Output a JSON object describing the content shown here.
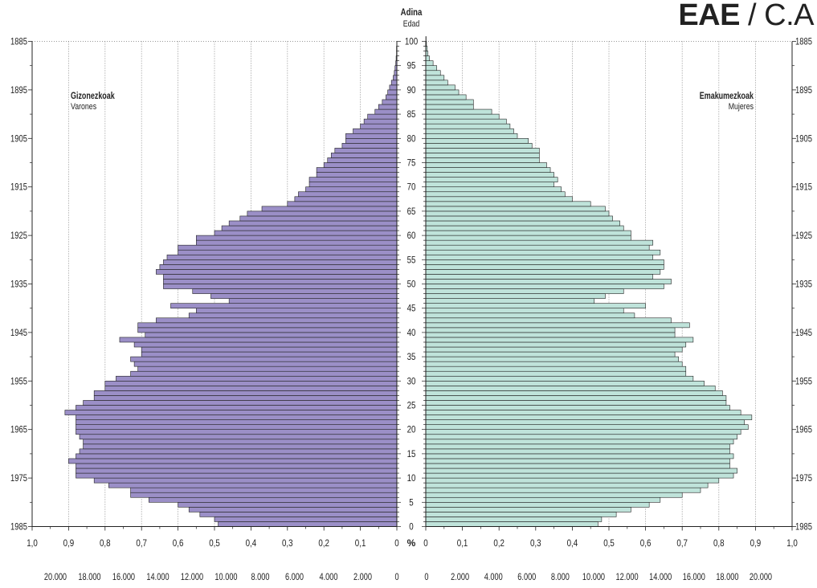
{
  "brand": {
    "bold": "EAE",
    "sep": " / ",
    "light": "C.A"
  },
  "chart_data": {
    "type": "bar",
    "orientation": "horizontal-pyramid",
    "center_title": "Adina",
    "center_subtitle": "Edad",
    "left_series": {
      "name": "Gizonezkoak",
      "subname": "Varones",
      "color": "#9b8fc7"
    },
    "right_series": {
      "name": "Emakumezkoak",
      "subname": "Mujeres",
      "color": "#bfe3da"
    },
    "percent_label": "%",
    "age_range": [
      0,
      100
    ],
    "age_ticks": [
      "0",
      "5",
      "10",
      "15",
      "20",
      "25",
      "30",
      "35",
      "40",
      "45",
      "50",
      "55",
      "60",
      "65",
      "70",
      "75",
      "80",
      "85",
      "90",
      "95",
      "100"
    ],
    "year_ticks": [
      "1885",
      "1895",
      "1905",
      "1915",
      "1925",
      "1935",
      "1945",
      "1955",
      "1965",
      "1975",
      "1985"
    ],
    "pct_ticks_left": [
      "1,0",
      "0,9",
      "0,8",
      "0,7",
      "0,6",
      "0,5",
      "0,4",
      "0,3",
      "0,2",
      "0,1",
      "0"
    ],
    "pct_ticks_right": [
      "0",
      "0,1",
      "0,2",
      "0,3",
      "0,4",
      "0,5",
      "0,6",
      "0,7",
      "0,8",
      "0,9",
      "1,0"
    ],
    "abs_ticks_left": [
      "20.000",
      "18.000",
      "16.000",
      "14.000",
      "12.000",
      "10.000",
      "8.000",
      "6.000",
      "4.000",
      "2.000",
      "0"
    ],
    "abs_ticks_right": [
      "0",
      "2.000",
      "4.000",
      "6.000",
      "8.000",
      "10.000",
      "12.000",
      "14.000",
      "16.000",
      "18.000",
      "20.000"
    ],
    "pct_max": 1.0,
    "age": [
      0,
      1,
      2,
      3,
      4,
      5,
      6,
      7,
      8,
      9,
      10,
      11,
      12,
      13,
      14,
      15,
      16,
      17,
      18,
      19,
      20,
      21,
      22,
      23,
      24,
      25,
      26,
      27,
      28,
      29,
      30,
      31,
      32,
      33,
      34,
      35,
      36,
      37,
      38,
      39,
      40,
      41,
      42,
      43,
      44,
      45,
      46,
      47,
      48,
      49,
      50,
      51,
      52,
      53,
      54,
      55,
      56,
      57,
      58,
      59,
      60,
      61,
      62,
      63,
      64,
      65,
      66,
      67,
      68,
      69,
      70,
      71,
      72,
      73,
      74,
      75,
      76,
      77,
      78,
      79,
      80,
      81,
      82,
      83,
      84,
      85,
      86,
      87,
      88,
      89,
      90,
      91,
      92,
      93,
      94,
      95,
      96,
      97,
      98,
      99,
      100
    ],
    "males_pct": [
      0.49,
      0.5,
      0.54,
      0.57,
      0.6,
      0.68,
      0.73,
      0.73,
      0.79,
      0.83,
      0.88,
      0.88,
      0.88,
      0.9,
      0.88,
      0.87,
      0.86,
      0.86,
      0.87,
      0.88,
      0.88,
      0.88,
      0.88,
      0.91,
      0.88,
      0.86,
      0.83,
      0.83,
      0.8,
      0.8,
      0.77,
      0.73,
      0.71,
      0.72,
      0.73,
      0.7,
      0.7,
      0.72,
      0.76,
      0.69,
      0.71,
      0.71,
      0.66,
      0.57,
      0.55,
      0.62,
      0.46,
      0.51,
      0.56,
      0.64,
      0.64,
      0.64,
      0.66,
      0.65,
      0.64,
      0.63,
      0.6,
      0.6,
      0.55,
      0.55,
      0.5,
      0.48,
      0.46,
      0.43,
      0.41,
      0.37,
      0.3,
      0.28,
      0.27,
      0.25,
      0.24,
      0.24,
      0.22,
      0.22,
      0.2,
      0.19,
      0.18,
      0.17,
      0.15,
      0.14,
      0.14,
      0.12,
      0.1,
      0.09,
      0.08,
      0.06,
      0.05,
      0.04,
      0.03,
      0.025,
      0.02,
      0.015,
      0.01,
      0.007,
      0.005,
      0.003,
      0.002,
      0.001,
      0.001,
      0,
      0
    ],
    "females_pct": [
      0.47,
      0.48,
      0.52,
      0.56,
      0.61,
      0.64,
      0.7,
      0.75,
      0.77,
      0.8,
      0.84,
      0.85,
      0.83,
      0.83,
      0.84,
      0.83,
      0.83,
      0.84,
      0.85,
      0.86,
      0.88,
      0.87,
      0.89,
      0.86,
      0.83,
      0.82,
      0.82,
      0.81,
      0.79,
      0.76,
      0.73,
      0.71,
      0.71,
      0.7,
      0.69,
      0.68,
      0.7,
      0.71,
      0.73,
      0.68,
      0.68,
      0.72,
      0.67,
      0.57,
      0.54,
      0.6,
      0.46,
      0.49,
      0.54,
      0.65,
      0.67,
      0.62,
      0.64,
      0.65,
      0.65,
      0.62,
      0.64,
      0.61,
      0.62,
      0.56,
      0.56,
      0.54,
      0.53,
      0.51,
      0.5,
      0.49,
      0.45,
      0.4,
      0.38,
      0.37,
      0.35,
      0.36,
      0.35,
      0.34,
      0.33,
      0.31,
      0.31,
      0.31,
      0.29,
      0.28,
      0.25,
      0.24,
      0.23,
      0.22,
      0.2,
      0.18,
      0.13,
      0.13,
      0.11,
      0.09,
      0.08,
      0.06,
      0.05,
      0.04,
      0.03,
      0.02,
      0.01,
      0.006,
      0.004,
      0.002,
      0.001
    ]
  }
}
